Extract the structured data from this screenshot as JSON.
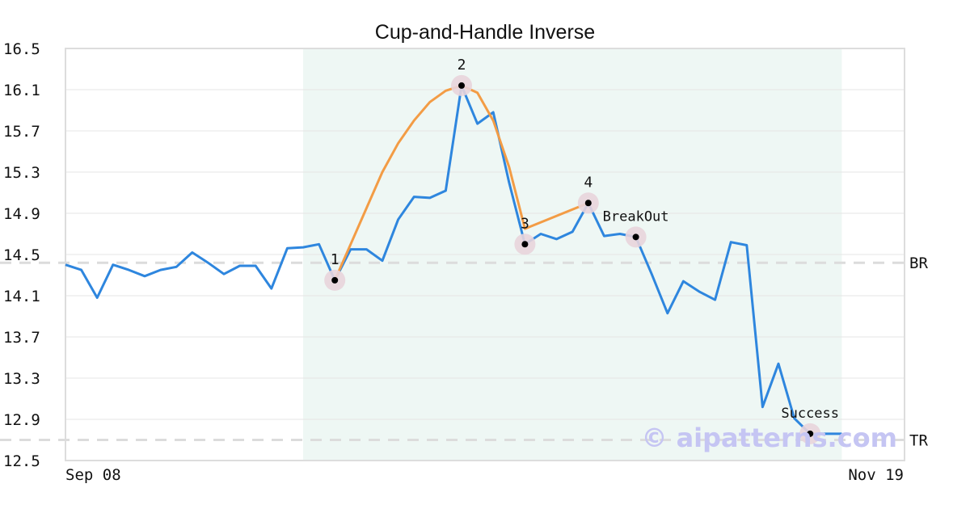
{
  "chart_data": {
    "type": "line",
    "title": "Cup-and-Handle Inverse",
    "xlabel": "",
    "ylabel": "",
    "ylim": [
      12.5,
      16.5
    ],
    "yticks": [
      "16.5",
      "16.1",
      "15.7",
      "15.3",
      "14.9",
      "14.5",
      "14.1",
      "13.7",
      "13.3",
      "12.9",
      "12.5"
    ],
    "x_tick_labels": [
      "Sep 08",
      "Nov 19"
    ],
    "grid": true,
    "highlight_range": [
      15,
      49
    ],
    "series": [
      {
        "color": "#2e86de",
        "values": [
          14.4,
          14.35,
          14.08,
          14.4,
          14.35,
          14.29,
          14.35,
          14.38,
          14.52,
          14.42,
          14.31,
          14.39,
          14.39,
          14.17,
          14.56,
          14.57,
          14.6,
          14.25,
          14.55,
          14.55,
          14.44,
          14.84,
          15.06,
          15.05,
          15.12,
          16.14,
          15.77,
          15.88,
          15.2,
          14.6,
          14.7,
          14.65,
          14.72,
          15.0,
          14.68,
          14.7,
          14.67,
          14.31,
          13.93,
          14.24,
          14.14,
          14.06,
          14.62,
          14.59,
          13.02,
          13.44,
          12.91,
          12.76,
          12.76,
          12.76
        ]
      },
      {
        "color": "#f39c45",
        "x": [
          17,
          18,
          19,
          20,
          21,
          22,
          23,
          24,
          25,
          26,
          27,
          28,
          29,
          33
        ],
        "values": [
          14.25,
          14.6,
          14.95,
          15.3,
          15.58,
          15.8,
          15.98,
          16.09,
          16.14,
          16.07,
          15.8,
          15.35,
          14.75,
          15.0
        ]
      }
    ],
    "points": [
      {
        "x": 17,
        "y": 14.25,
        "label": "1"
      },
      {
        "x": 25,
        "y": 16.14,
        "label": "2"
      },
      {
        "x": 29,
        "y": 14.6,
        "label": "3"
      },
      {
        "x": 33,
        "y": 15.0,
        "label": "4"
      },
      {
        "x": 36,
        "y": 14.67,
        "label": "BreakOut"
      },
      {
        "x": 47,
        "y": 12.76,
        "label": "Success"
      }
    ],
    "levels": [
      {
        "y": 14.42,
        "label": "BR"
      },
      {
        "y": 12.7,
        "label": "TR"
      }
    ],
    "watermark": "© aipatterns.com"
  }
}
